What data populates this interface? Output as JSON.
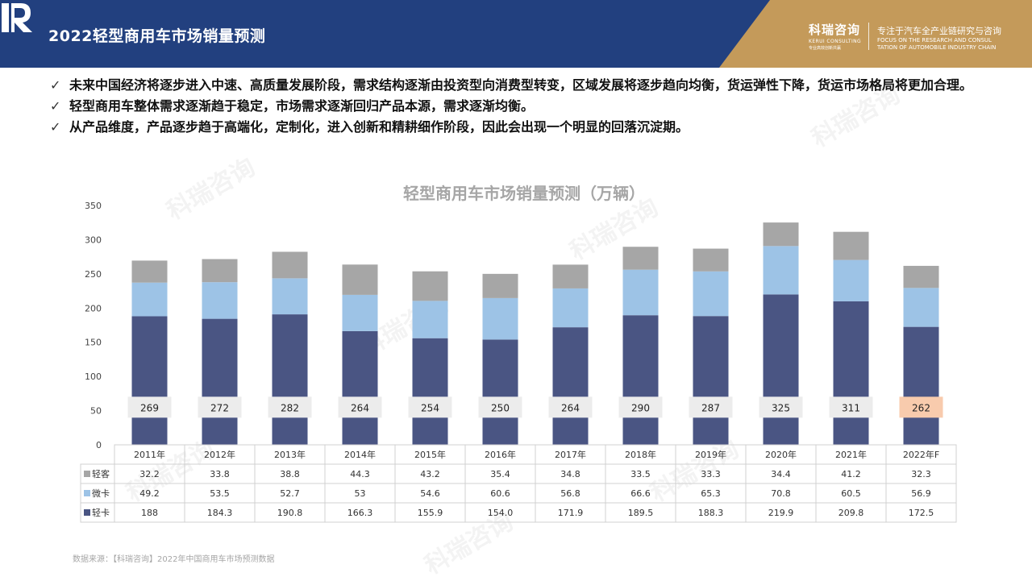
{
  "header": {
    "title": "2022轻型商用车市场销量预测",
    "logo_cn": "科瑞咨询",
    "logo_en": "KERUI CONSULTING",
    "logo_sub": "专业高效创新共赢",
    "tagline_cn": "专注于汽车全产业链研究与咨询",
    "tagline_en_1": "FOCUS ON THE RESEARCH AND CONSUL",
    "tagline_en_2": "TATION OF AUTOMOBILE INDUSTRY CHAIN"
  },
  "bullets": [
    "未来中国经济将逐步进入中速、高质量发展阶段，需求结构逐渐由投资型向消费型转变，区域发展将逐步趋向均衡，货运弹性下降，货运市场格局将更加合理。",
    "轻型商用车整体需求逐渐趋于稳定，市场需求逐渐回归产品本源，需求逐渐均衡。",
    "从产品维度，产品逐步趋于高端化，定制化，进入创新和精耕细作阶段，因此会出现一个明显的回落沉淀期。"
  ],
  "check_glyph": "✓",
  "watermark_text": "科瑞咨询",
  "source": "数据来源：【科瑞咨询】2022年中国商用车市场预测数据",
  "chart_data": {
    "type": "bar",
    "stacked": true,
    "title": "轻型商用车市场销量预测（万辆）",
    "categories": [
      "2011年",
      "2012年",
      "2013年",
      "2014年",
      "2015年",
      "2016年",
      "2017年",
      "2018年",
      "2019年",
      "2020年",
      "2021年",
      "2022年F"
    ],
    "series": [
      {
        "name": "轻卡",
        "color": "#4a5583",
        "values": [
          188,
          184.3,
          190.8,
          166.3,
          155.9,
          154.0,
          171.9,
          189.5,
          188.3,
          219.9,
          209.8,
          172.5
        ],
        "labels": [
          "188",
          "184.3",
          "190.8",
          "166.3",
          "155.9",
          "154.0",
          "171.9",
          "189.5",
          "188.3",
          "219.9",
          "209.8",
          "172.5"
        ]
      },
      {
        "name": "微卡",
        "color": "#9dc3e6",
        "values": [
          49.2,
          53.5,
          52.7,
          53,
          54.6,
          60.6,
          56.8,
          66.6,
          65.3,
          70.8,
          60.5,
          56.9
        ],
        "labels": [
          "49.2",
          "53.5",
          "52.7",
          "53",
          "54.6",
          "60.6",
          "56.8",
          "66.6",
          "65.3",
          "70.8",
          "60.5",
          "56.9"
        ]
      },
      {
        "name": "轻客",
        "color": "#a6a6a6",
        "values": [
          32.2,
          33.8,
          38.8,
          44.3,
          43.2,
          35.4,
          34.8,
          33.5,
          33.3,
          34.4,
          41.2,
          32.3
        ],
        "labels": [
          "32.2",
          "33.8",
          "38.8",
          "44.3",
          "43.2",
          "35.4",
          "34.8",
          "33.5",
          "33.3",
          "34.4",
          "41.2",
          "32.3"
        ]
      }
    ],
    "totals": [
      "269",
      "272",
      "282",
      "264",
      "254",
      "250",
      "264",
      "290",
      "287",
      "325",
      "311",
      "262"
    ],
    "total_label_color": "#ececec",
    "highlight_total_color": "#f8cbad",
    "ylim": [
      0,
      350
    ],
    "yticks": [
      0,
      50,
      100,
      150,
      200,
      250,
      300,
      350
    ],
    "grid": false,
    "legend": "data-table",
    "table_row_order": [
      "轻客",
      "微卡",
      "轻卡"
    ]
  }
}
